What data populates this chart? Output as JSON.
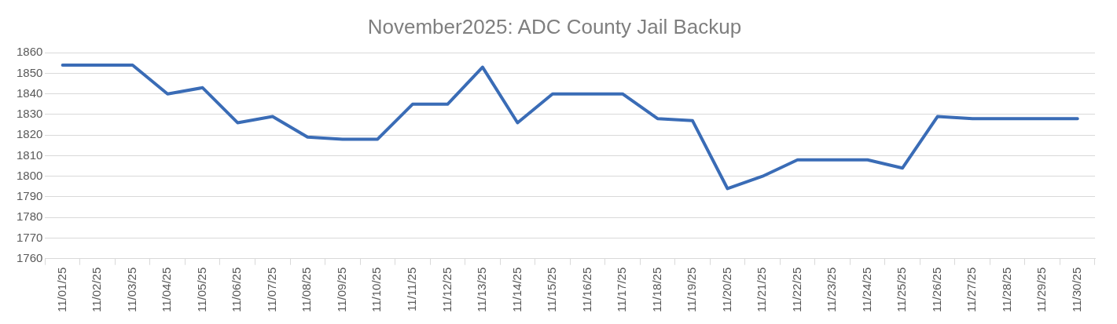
{
  "chart_data": {
    "type": "line",
    "title": "November2025: ADC County Jail Backup",
    "categories": [
      "11/01/25",
      "11/02/25",
      "11/03/25",
      "11/04/25",
      "11/05/25",
      "11/06/25",
      "11/07/25",
      "11/08/25",
      "11/09/25",
      "11/10/25",
      "11/11/25",
      "11/12/25",
      "11/13/25",
      "11/14/25",
      "11/15/25",
      "11/16/25",
      "11/17/25",
      "11/18/25",
      "11/19/25",
      "11/20/25",
      "11/21/25",
      "11/22/25",
      "11/23/25",
      "11/24/25",
      "11/25/25",
      "11/26/25",
      "11/27/25",
      "11/28/25",
      "11/29/25",
      "11/30/25"
    ],
    "series": [
      {
        "color": "#3a6cb6",
        "values": [
          1854,
          1854,
          1854,
          1840,
          1843,
          1826,
          1829,
          1819,
          1818,
          1818,
          1835,
          1835,
          1853,
          1826,
          1840,
          1840,
          1840,
          1828,
          1827,
          1794,
          1800,
          1808,
          1808,
          1808,
          1804,
          1829,
          1828,
          1828,
          1828,
          1828
        ]
      }
    ],
    "ylim": [
      1760,
      1860
    ],
    "yticks": [
      1760,
      1770,
      1780,
      1790,
      1800,
      1810,
      1820,
      1830,
      1840,
      1850,
      1860
    ],
    "grid": "y",
    "legend": false,
    "marker": "none",
    "line_style": "solid"
  }
}
